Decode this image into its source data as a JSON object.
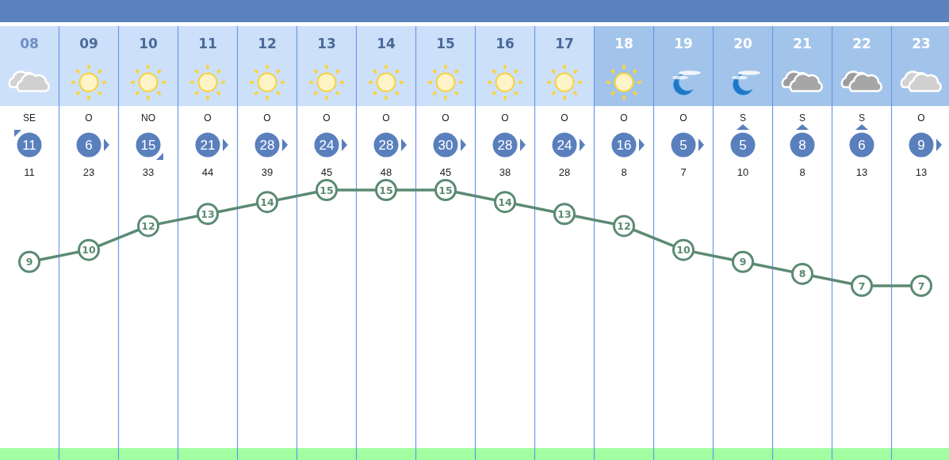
{
  "chart_data": {
    "type": "line",
    "categories": [
      "08",
      "09",
      "10",
      "11",
      "12",
      "13",
      "14",
      "15",
      "16",
      "17",
      "18",
      "19",
      "20",
      "21",
      "22",
      "23"
    ],
    "series": [
      {
        "color": "#5b8a74",
        "values": [
          9,
          10,
          12,
          13,
          14,
          15,
          15,
          15,
          14,
          13,
          12,
          10,
          9,
          8,
          7,
          7
        ]
      }
    ],
    "data_labels": true,
    "marker": "circle",
    "line_style": "solid",
    "grid": "x",
    "tick_labels": "x",
    "annotations": [
      "SE",
      "11",
      "11",
      "O",
      "6",
      "23",
      "NO",
      "15",
      "33",
      "O",
      "21",
      "44",
      "O",
      "28",
      "39",
      "O",
      "24",
      "45",
      "O",
      "28",
      "48",
      "O",
      "30",
      "45",
      "O",
      "28",
      "38",
      "O",
      "24",
      "28",
      "O",
      "16",
      "8",
      "O",
      "5",
      "7",
      "S",
      "5",
      "10",
      "S",
      "8",
      "8",
      "S",
      "6",
      "13",
      "O",
      "9",
      "13"
    ]
  }
}
